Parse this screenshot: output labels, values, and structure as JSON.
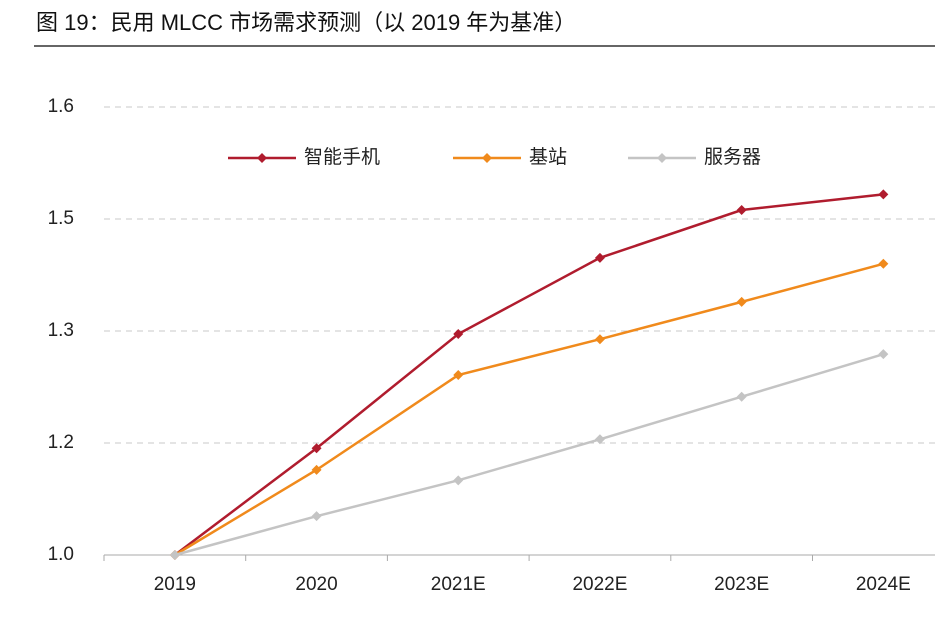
{
  "chart_data": {
    "type": "line",
    "title": "图 19：民用 MLCC 市场需求预测（以 2019 年为基准）",
    "categories": [
      "2019",
      "2020",
      "2021E",
      "2022E",
      "2023E",
      "2024E"
    ],
    "series": [
      {
        "name": "智能手机",
        "color": "#b01c2e",
        "values": [
          1.0,
          1.143,
          1.296,
          1.398,
          1.462,
          1.483
        ]
      },
      {
        "name": "基站",
        "color": "#f08a1c",
        "values": [
          1.0,
          1.114,
          1.241,
          1.289,
          1.339,
          1.39
        ]
      },
      {
        "name": "服务器",
        "color": "#c4c4c4",
        "values": [
          1.0,
          1.052,
          1.1,
          1.155,
          1.212,
          1.269
        ]
      }
    ],
    "ylim": [
      1.0,
      1.6
    ],
    "yticks": [
      {
        "value": 1.0,
        "label": "1.0"
      },
      {
        "value": 1.15,
        "label": "1.2"
      },
      {
        "value": 1.3,
        "label": "1.3"
      },
      {
        "value": 1.45,
        "label": "1.5"
      },
      {
        "value": 1.6,
        "label": "1.6"
      }
    ],
    "grid": true,
    "legend": "top"
  }
}
